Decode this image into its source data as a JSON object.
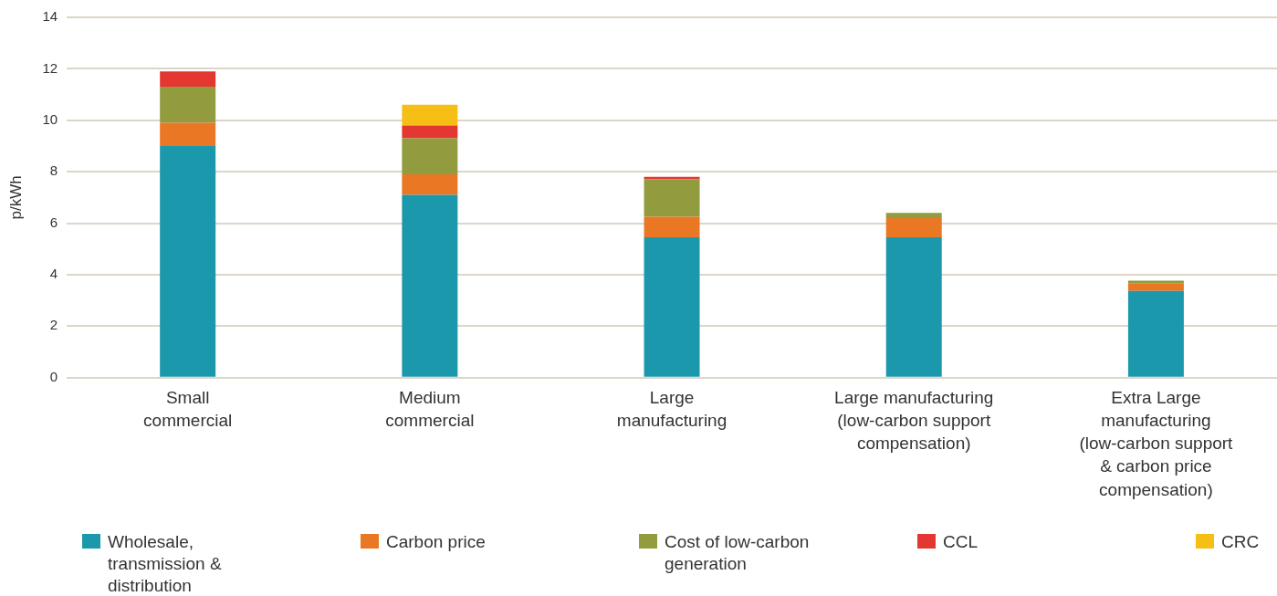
{
  "chart_data": {
    "type": "bar",
    "stacked": true,
    "ylabel": "p/kWh",
    "ylim": [
      0,
      14
    ],
    "yticks": [
      0,
      2,
      4,
      6,
      8,
      10,
      12,
      14
    ],
    "grid": "y",
    "legend": "bottom",
    "categories": [
      "Small\ncommercial",
      "Medium\ncommercial",
      "Large\nmanufacturing",
      "Large manufacturing\n(low-carbon support\ncompensation)",
      "Extra Large\nmanufacturing\n(low-carbon support\n& carbon price\ncompensation)"
    ],
    "series": [
      {
        "name": "Wholesale, transmission & distribution",
        "color": "#1b98ab",
        "values": [
          9.0,
          7.1,
          5.45,
          5.45,
          3.37
        ]
      },
      {
        "name": "Carbon price",
        "color": "#e97724",
        "values": [
          0.9,
          0.8,
          0.8,
          0.75,
          0.3
        ]
      },
      {
        "name": "Cost of low-carbon generation",
        "color": "#929b3d",
        "values": [
          1.4,
          1.4,
          1.45,
          0.2,
          0.1
        ]
      },
      {
        "name": "CCL",
        "color": "#e43731",
        "values": [
          0.6,
          0.5,
          0.1,
          null,
          null
        ]
      },
      {
        "name": "CRC",
        "color": "#f5bf16",
        "values": [
          null,
          0.8,
          null,
          null,
          null
        ]
      }
    ]
  }
}
